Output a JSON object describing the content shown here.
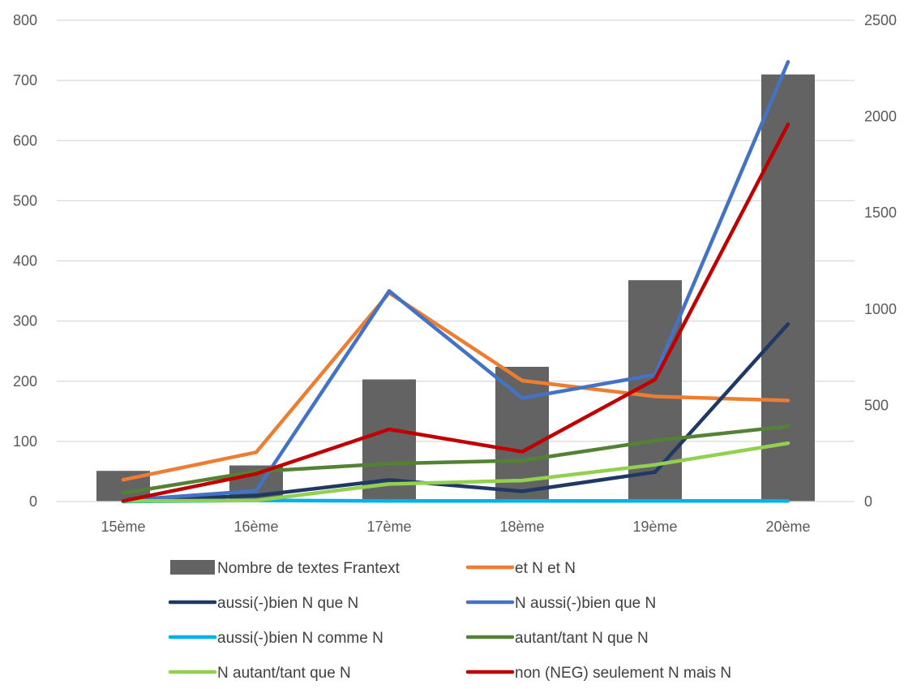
{
  "chart_data": {
    "type": "bar",
    "categories": [
      "15ème",
      "16ème",
      "17ème",
      "18ème",
      "19ème",
      "20ème"
    ],
    "bars": {
      "name": "Nombre de textes Frantext",
      "axis": "left",
      "color": "#636363",
      "values": [
        51,
        60,
        203,
        224,
        368,
        710
      ]
    },
    "lines": [
      {
        "name": "et N et N",
        "axis": "right",
        "color": "#ED7D31",
        "values": [
          113,
          256,
          1084,
          628,
          546,
          525
        ]
      },
      {
        "name": "aussi(-)bien N que N",
        "axis": "right",
        "color": "#1F3864",
        "values": [
          3,
          31,
          112,
          53,
          153,
          922
        ]
      },
      {
        "name": "N aussi(-)bien que N",
        "axis": "right",
        "color": "#4472C4",
        "values": [
          6,
          56,
          1094,
          537,
          659,
          2284
        ]
      },
      {
        "name": "aussi(-)bien N comme N",
        "axis": "right",
        "color": "#00B0F0",
        "values": [
          0,
          6,
          3,
          3,
          3,
          3
        ]
      },
      {
        "name": "autant/tant N que N",
        "axis": "right",
        "color": "#548235",
        "values": [
          44,
          156,
          197,
          213,
          316,
          391
        ]
      },
      {
        "name": "N autant/tant que N",
        "axis": "right",
        "color": "#92D050",
        "values": [
          3,
          6,
          91,
          109,
          191,
          303
        ]
      },
      {
        "name": "non (NEG) seulement N mais N",
        "axis": "right",
        "color": "#C00000",
        "values": [
          3,
          144,
          375,
          259,
          634,
          1959
        ]
      }
    ],
    "left_axis": {
      "min": 0,
      "max": 800,
      "step": 100,
      "ticks": [
        "0",
        "100",
        "200",
        "300",
        "400",
        "500",
        "600",
        "700",
        "800"
      ]
    },
    "right_axis": {
      "min": 0,
      "max": 2500,
      "step": 500,
      "ticks": [
        "0",
        "500",
        "1000",
        "1500",
        "2000",
        "2500"
      ]
    },
    "legend_placement": "bottom",
    "grid": true
  }
}
